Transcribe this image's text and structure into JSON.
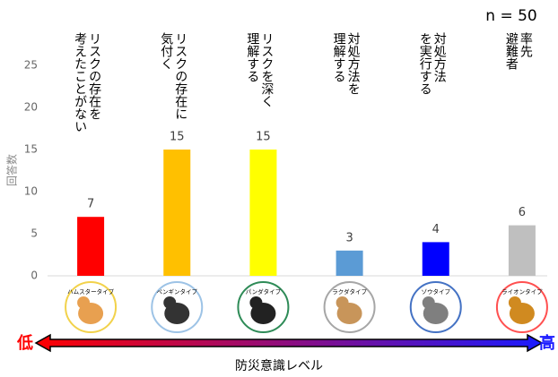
{
  "chart_data": {
    "type": "bar",
    "annotation": "n = 50",
    "y_label": "回答数",
    "x_label": "防災意識レベル",
    "scale_low": "低",
    "scale_high": "高",
    "categories": [
      "リスクの存在を\n考えたことがない",
      "リスクの存在に\n気付く",
      "リスクを深く\n理解する",
      "対処方法を\n理解する",
      "対処方法\nを実行する",
      "率先\n避難者"
    ],
    "type_labels": [
      "ハムスタータイプ",
      "ペンギンタイプ",
      "パンダタイプ",
      "ラクダタイプ",
      "ゾウタイプ",
      "ライオンタイプ"
    ],
    "values": [
      7,
      15,
      15,
      3,
      4,
      6
    ],
    "colors": [
      "#ff0000",
      "#ffc000",
      "#ffff00",
      "#5b9bd5",
      "#0000ff",
      "#bfbfbf"
    ],
    "ylim": [
      0,
      25
    ],
    "yticks": [
      0,
      5,
      10,
      15,
      20,
      25
    ],
    "grid": false
  }
}
